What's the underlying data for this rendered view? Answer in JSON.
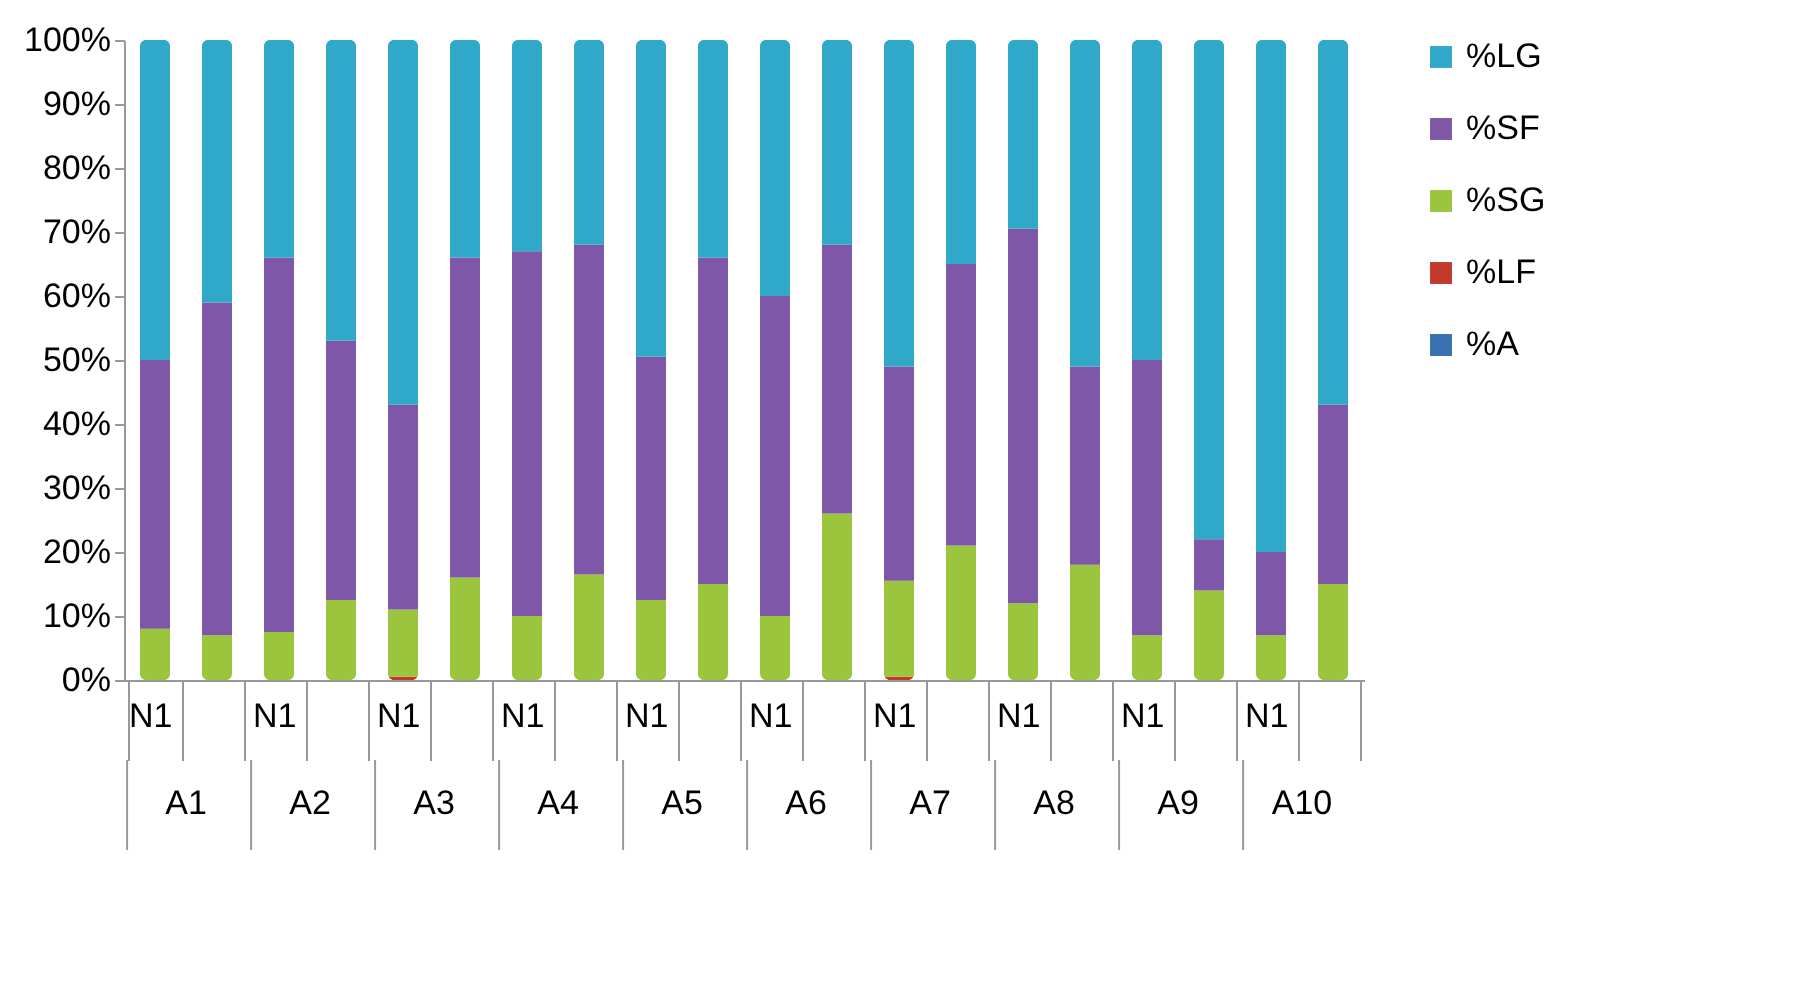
{
  "chart_data": {
    "type": "bar",
    "stacked": true,
    "categories": [
      "N1",
      null,
      "N1",
      null,
      "N1",
      null,
      "N1",
      null,
      "N1",
      null,
      "N1",
      null,
      "N1",
      null,
      "N1",
      null,
      "N1",
      null,
      "N1",
      null
    ],
    "annotations": [
      "A1",
      "A2",
      "A3",
      "A4",
      "A5",
      "A6",
      "A7",
      "A8",
      "A9",
      "A10"
    ],
    "ylim": [
      0,
      100
    ],
    "yticks": [
      {
        "value": 0,
        "label": "0%"
      },
      {
        "value": 10,
        "label": "10%"
      },
      {
        "value": 20,
        "label": "20%"
      },
      {
        "value": 30,
        "label": "30%"
      },
      {
        "value": 40,
        "label": "40%"
      },
      {
        "value": 50,
        "label": "50%"
      },
      {
        "value": 60,
        "label": "60%"
      },
      {
        "value": 70,
        "label": "70%"
      },
      {
        "value": 80,
        "label": "80%"
      },
      {
        "value": 90,
        "label": "90%"
      },
      {
        "value": 100,
        "label": "100%"
      }
    ],
    "legend": "right",
    "series": [
      {
        "name": "%A",
        "color": "#3a6fb0",
        "values": [
          0,
          0,
          0,
          0,
          0,
          0,
          0,
          0,
          0,
          0,
          0,
          0,
          0,
          0,
          0,
          0,
          0,
          0,
          0,
          0
        ]
      },
      {
        "name": "%LF",
        "color": "#c0392b",
        "values": [
          0,
          0,
          0,
          0,
          0.5,
          0,
          0,
          0,
          0,
          0,
          0,
          0,
          0.5,
          0,
          0,
          0,
          0,
          0,
          0,
          0
        ]
      },
      {
        "name": "%SG",
        "color": "#9bc53d",
        "values": [
          8,
          7,
          7.5,
          12.5,
          10.5,
          16,
          10,
          16.5,
          12.5,
          15,
          10,
          26,
          15,
          21,
          12,
          18,
          7,
          14,
          7,
          15
        ]
      },
      {
        "name": "%SF",
        "color": "#7e57a8",
        "values": [
          42,
          52,
          58.5,
          40.5,
          32,
          50,
          57,
          51.5,
          38,
          51,
          50,
          42,
          33.5,
          44,
          58.5,
          31,
          43,
          8,
          13,
          28
        ]
      },
      {
        "name": "%LG",
        "color": "#2fa8c9",
        "values": [
          50,
          41,
          34,
          47,
          57,
          34,
          33,
          32,
          49.5,
          34,
          40,
          32,
          51,
          35,
          29.5,
          51,
          50,
          78,
          80,
          57
        ]
      }
    ]
  }
}
